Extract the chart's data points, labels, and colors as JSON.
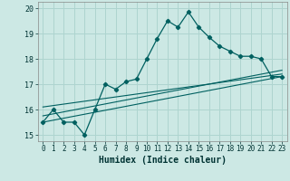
{
  "title": "",
  "xlabel": "Humidex (Indice chaleur)",
  "ylabel": "",
  "bg_color": "#cce8e4",
  "grid_color": "#aed4cf",
  "line_color": "#006060",
  "xlim": [
    -0.5,
    23.5
  ],
  "ylim": [
    14.75,
    20.25
  ],
  "xticks": [
    0,
    1,
    2,
    3,
    4,
    5,
    6,
    7,
    8,
    9,
    10,
    11,
    12,
    13,
    14,
    15,
    16,
    17,
    18,
    19,
    20,
    21,
    22,
    23
  ],
  "yticks": [
    15,
    16,
    17,
    18,
    19,
    20
  ],
  "main_x": [
    0,
    1,
    2,
    3,
    4,
    5,
    6,
    7,
    8,
    9,
    10,
    11,
    12,
    13,
    14,
    15,
    16,
    17,
    18,
    19,
    20,
    21,
    22,
    23
  ],
  "main_y": [
    15.5,
    16.0,
    15.5,
    15.5,
    15.0,
    16.0,
    17.0,
    16.8,
    17.1,
    17.2,
    18.0,
    18.8,
    19.5,
    19.25,
    19.85,
    19.25,
    18.85,
    18.5,
    18.3,
    18.1,
    18.1,
    18.0,
    17.3,
    17.3
  ],
  "line1_x": [
    0,
    23
  ],
  "line1_y": [
    15.5,
    17.3
  ],
  "line2_x": [
    0,
    23
  ],
  "line2_y": [
    15.75,
    17.55
  ],
  "line3_x": [
    0,
    23
  ],
  "line3_y": [
    16.1,
    17.4
  ]
}
